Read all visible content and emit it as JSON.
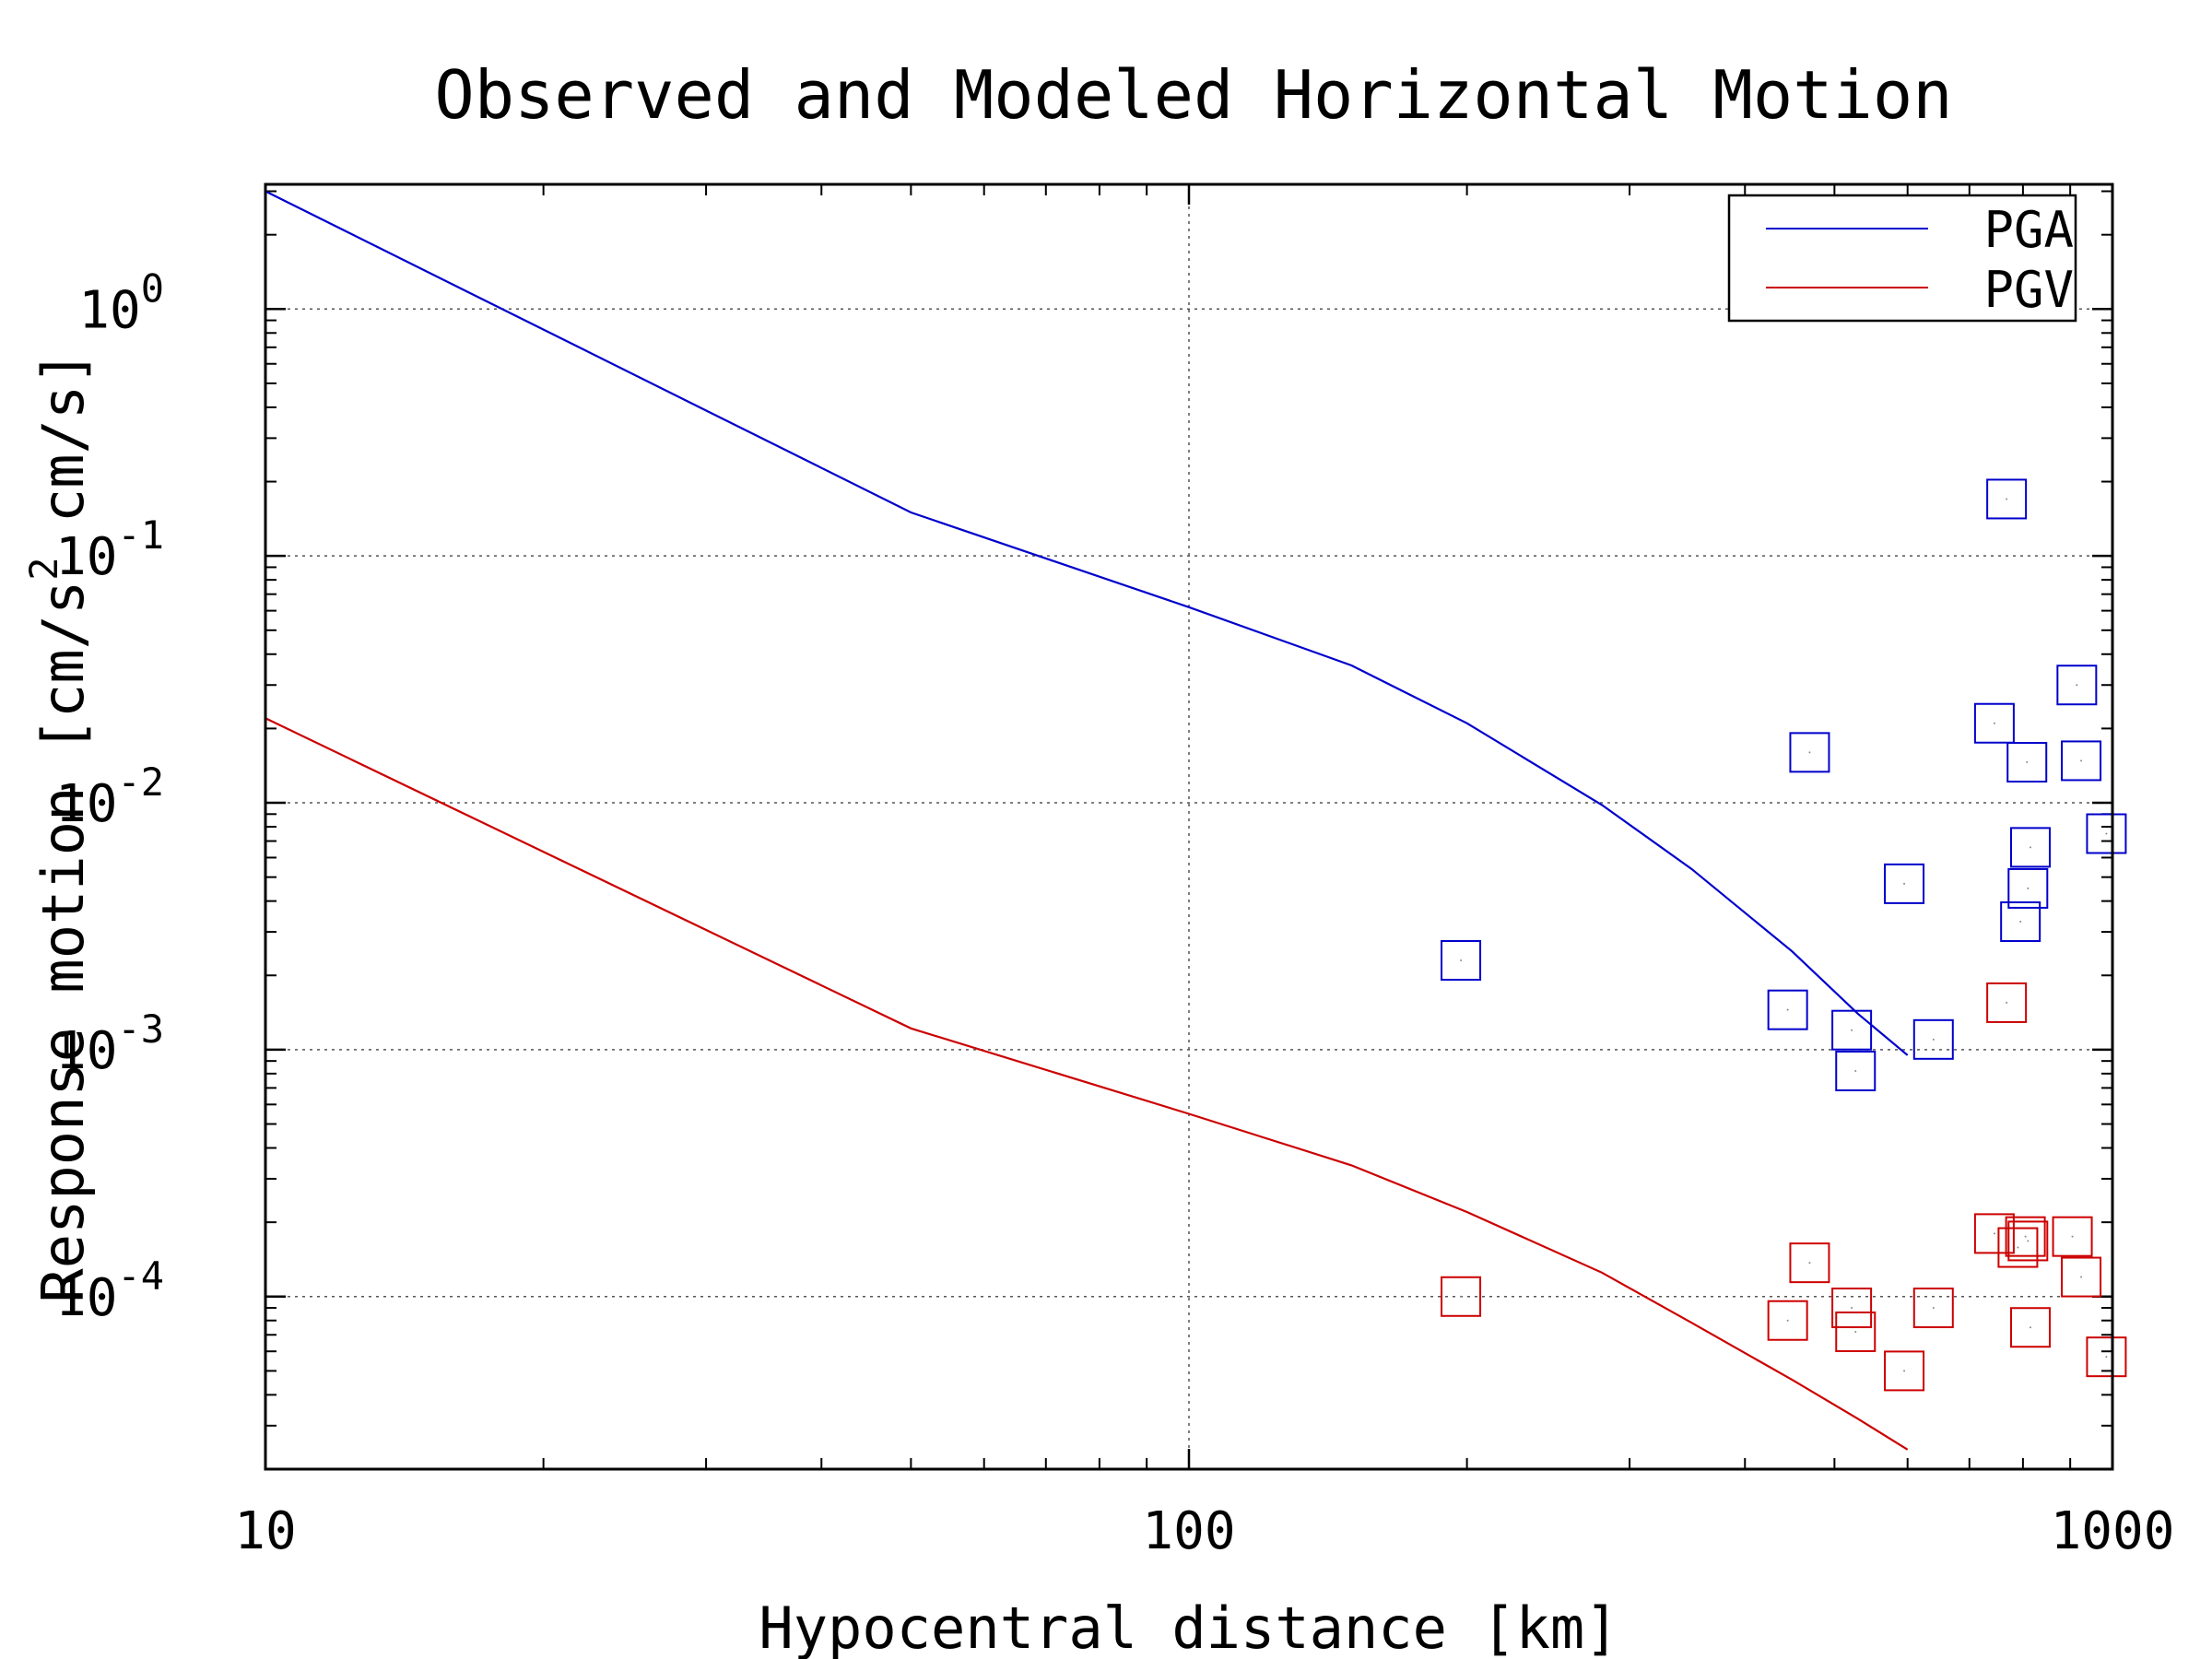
{
  "chart_data": {
    "type": "scatter",
    "title": "Observed and Modeled Horizontal Motion",
    "xlabel": "Hypocentral distance [km]",
    "ylabel": {
      "prefix": "Response motion [cm/s",
      "sup": "2",
      "suffix": "  cm/s]"
    },
    "x_scale": "log",
    "y_scale": "log",
    "xlim": [
      10,
      1000
    ],
    "ylim": [
      2e-05,
      3.2
    ],
    "grid": true,
    "legend_position": "top-right",
    "x_ticks": [
      {
        "value": 10,
        "label": "10"
      },
      {
        "value": 100,
        "label": "100"
      },
      {
        "value": 1000,
        "label": "1000"
      }
    ],
    "y_ticks": [
      {
        "value": 1,
        "base": "10",
        "exp": "0"
      },
      {
        "value": 0.1,
        "base": "10",
        "exp": "-1"
      },
      {
        "value": 0.01,
        "base": "10",
        "exp": "-2"
      },
      {
        "value": 0.001,
        "base": "10",
        "exp": "-3"
      },
      {
        "value": 0.0001,
        "base": "10",
        "exp": "-4"
      }
    ],
    "series": [
      {
        "name": "PGA",
        "color": "#0000cc",
        "model_curve": [
          [
            10,
            3.0
          ],
          [
            50,
            0.15
          ],
          [
            100,
            0.062
          ],
          [
            150,
            0.036
          ],
          [
            200,
            0.021
          ],
          [
            280,
            0.0098
          ],
          [
            350,
            0.0054
          ],
          [
            450,
            0.0025
          ],
          [
            530,
            0.0014
          ],
          [
            600,
            0.00095
          ]
        ],
        "observed": [
          [
            197,
            0.0023
          ],
          [
            470,
            0.016
          ],
          [
            445,
            0.00145
          ],
          [
            522,
            0.0012
          ],
          [
            527,
            0.00082
          ],
          [
            595,
            0.0047
          ],
          [
            640,
            0.0011
          ],
          [
            745,
            0.021
          ],
          [
            768,
            0.17
          ],
          [
            795,
            0.0033
          ],
          [
            808,
            0.0146
          ],
          [
            810,
            0.0045
          ],
          [
            815,
            0.0066
          ],
          [
            915,
            0.03
          ],
          [
            925,
            0.0148
          ],
          [
            985,
            0.0075
          ]
        ]
      },
      {
        "name": "PGV",
        "color": "#cc0000",
        "model_curve": [
          [
            10,
            0.022
          ],
          [
            50,
            0.00122
          ],
          [
            100,
            0.00055
          ],
          [
            150,
            0.00034
          ],
          [
            200,
            0.00022
          ],
          [
            280,
            0.000125
          ],
          [
            350,
            7.84e-05
          ],
          [
            450,
            4.6e-05
          ],
          [
            530,
            3.2e-05
          ],
          [
            600,
            2.4e-05
          ]
        ],
        "observed": [
          [
            197,
            0.0001
          ],
          [
            445,
            8e-05
          ],
          [
            470,
            0.000137
          ],
          [
            522,
            9e-05
          ],
          [
            527,
            7.2e-05
          ],
          [
            595,
            5e-05
          ],
          [
            640,
            9e-05
          ],
          [
            745,
            0.00018
          ],
          [
            768,
            0.00155
          ],
          [
            790,
            0.000158
          ],
          [
            805,
            0.000175
          ],
          [
            810,
            0.000168
          ],
          [
            815,
            7.5e-05
          ],
          [
            905,
            0.000175
          ],
          [
            925,
            0.00012
          ],
          [
            985,
            5.7e-05
          ]
        ]
      }
    ]
  }
}
